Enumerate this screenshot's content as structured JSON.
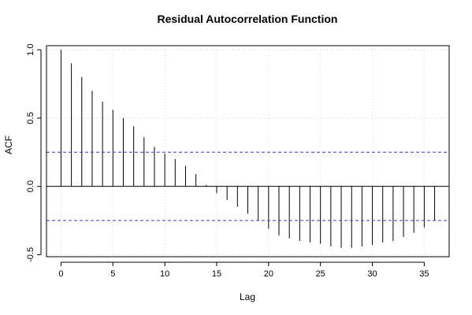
{
  "chart_data": {
    "type": "bar",
    "title": "Residual Autocorrelation Function",
    "xlabel": "Lag",
    "ylabel": "ACF",
    "xlim": [
      -1.4,
      37.4
    ],
    "ylim": [
      -0.515,
      1.03
    ],
    "x_ticks": [
      0,
      5,
      10,
      15,
      20,
      25,
      30,
      35
    ],
    "y_ticks": [
      -0.5,
      0.0,
      0.5,
      1.0
    ],
    "y_tick_labels": [
      "-0.5",
      "0.0",
      "0.5",
      "1.0"
    ],
    "grid": true,
    "confidence_bounds": [
      0.25,
      -0.25
    ],
    "lags": [
      0,
      1,
      2,
      3,
      4,
      5,
      6,
      7,
      8,
      9,
      10,
      11,
      12,
      13,
      14,
      15,
      16,
      17,
      18,
      19,
      20,
      21,
      22,
      23,
      24,
      25,
      26,
      27,
      28,
      29,
      30,
      31,
      32,
      33,
      34,
      35,
      36
    ],
    "values": [
      1.0,
      0.9,
      0.8,
      0.7,
      0.62,
      0.56,
      0.5,
      0.44,
      0.36,
      0.29,
      0.24,
      0.2,
      0.15,
      0.09,
      0.01,
      -0.05,
      -0.1,
      -0.15,
      -0.2,
      -0.25,
      -0.31,
      -0.36,
      -0.38,
      -0.4,
      -0.41,
      -0.42,
      -0.44,
      -0.45,
      -0.45,
      -0.44,
      -0.43,
      -0.41,
      -0.4,
      -0.37,
      -0.34,
      -0.3,
      -0.25
    ],
    "colors": {
      "bars": "#000000",
      "bounds": "#3333cc",
      "zero_line": "#000000",
      "grid": "#d9d9d9"
    }
  }
}
